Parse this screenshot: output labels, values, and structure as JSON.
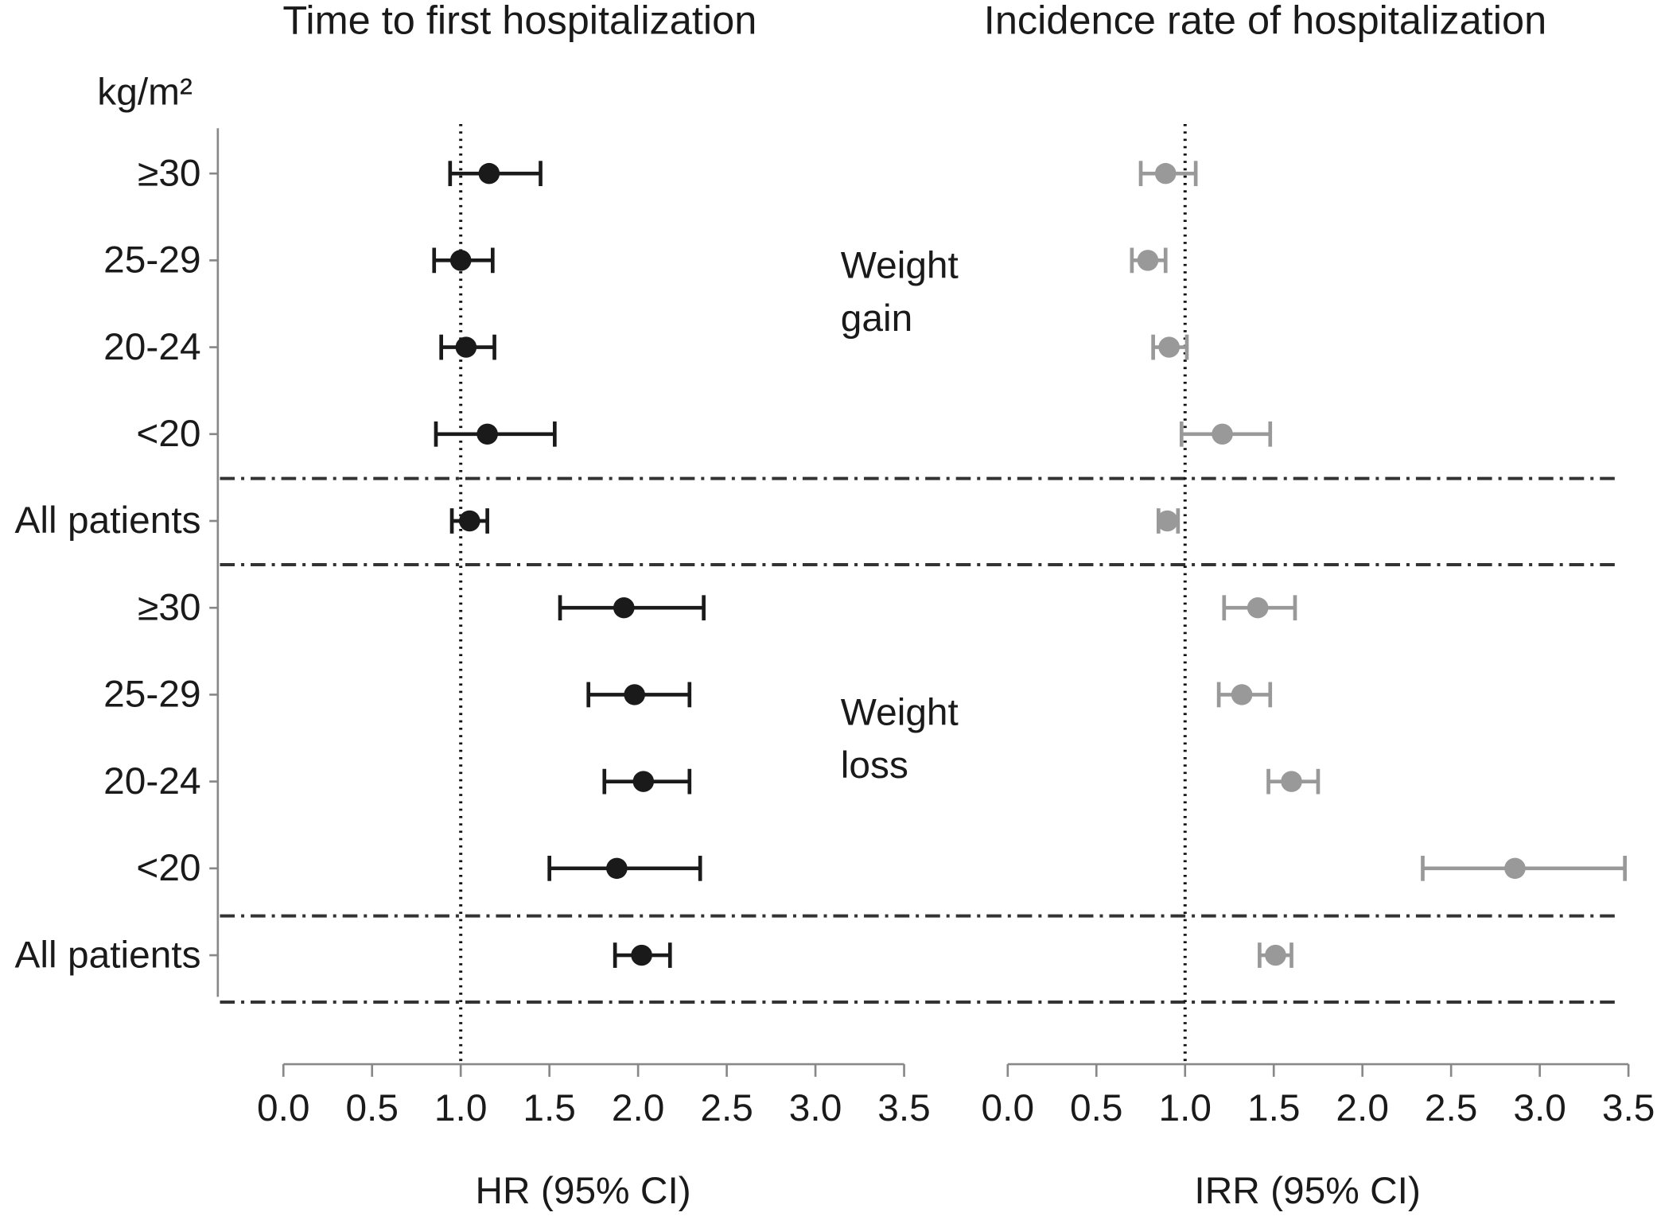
{
  "chart_data": {
    "type": "forest",
    "axis_title": "kg/m²",
    "categories": [
      "≥30",
      "25-29",
      "20-24",
      "<20",
      "All patients",
      "≥30",
      "25-29",
      "20-24",
      "<20",
      "All patients"
    ],
    "annotations": [
      [
        "Weight",
        "gain"
      ],
      [
        "Weight",
        "loss"
      ]
    ],
    "panels": [
      {
        "title": "Time to first hospitalization",
        "xlabel": "HR (95% CI)",
        "color": "#1a1a1a",
        "reference": 1,
        "xlim": [
          0,
          3.5
        ],
        "xticks": [
          {
            "value": 0,
            "label": "0.0"
          },
          0.5,
          {
            "value": 1,
            "label": "1.0"
          },
          1.5,
          {
            "value": 2,
            "label": "2.0"
          },
          2.5,
          {
            "value": 3,
            "label": "3.0"
          },
          3.5
        ],
        "values": [
          1.16,
          1.0,
          1.03,
          1.15,
          1.05,
          1.92,
          1.98,
          2.03,
          1.88,
          2.02
        ],
        "lower": [
          0.94,
          0.85,
          0.89,
          0.86,
          0.95,
          1.56,
          1.72,
          1.81,
          1.5,
          1.87
        ],
        "upper": [
          1.45,
          1.18,
          1.19,
          1.53,
          1.15,
          2.37,
          2.29,
          2.29,
          2.35,
          2.18
        ]
      },
      {
        "title": "Incidence rate of hospitalization",
        "xlabel": "IRR (95% CI)",
        "color": "#999999",
        "reference": 1,
        "xlim": [
          0,
          3.5
        ],
        "xticks": [
          {
            "value": 0,
            "label": "0.0"
          },
          0.5,
          {
            "value": 1,
            "label": "1.0"
          },
          1.5,
          {
            "value": 2,
            "label": "2.0"
          },
          2.5,
          {
            "value": 3,
            "label": "3.0"
          },
          3.5
        ],
        "values": [
          0.89,
          0.79,
          0.91,
          1.21,
          0.9,
          1.41,
          1.32,
          1.6,
          2.86,
          1.51
        ],
        "lower": [
          0.75,
          0.7,
          0.82,
          0.98,
          0.85,
          1.22,
          1.19,
          1.47,
          2.34,
          1.42
        ],
        "upper": [
          1.06,
          0.89,
          1.01,
          1.48,
          0.96,
          1.62,
          1.48,
          1.75,
          3.48,
          1.6
        ]
      }
    ]
  }
}
